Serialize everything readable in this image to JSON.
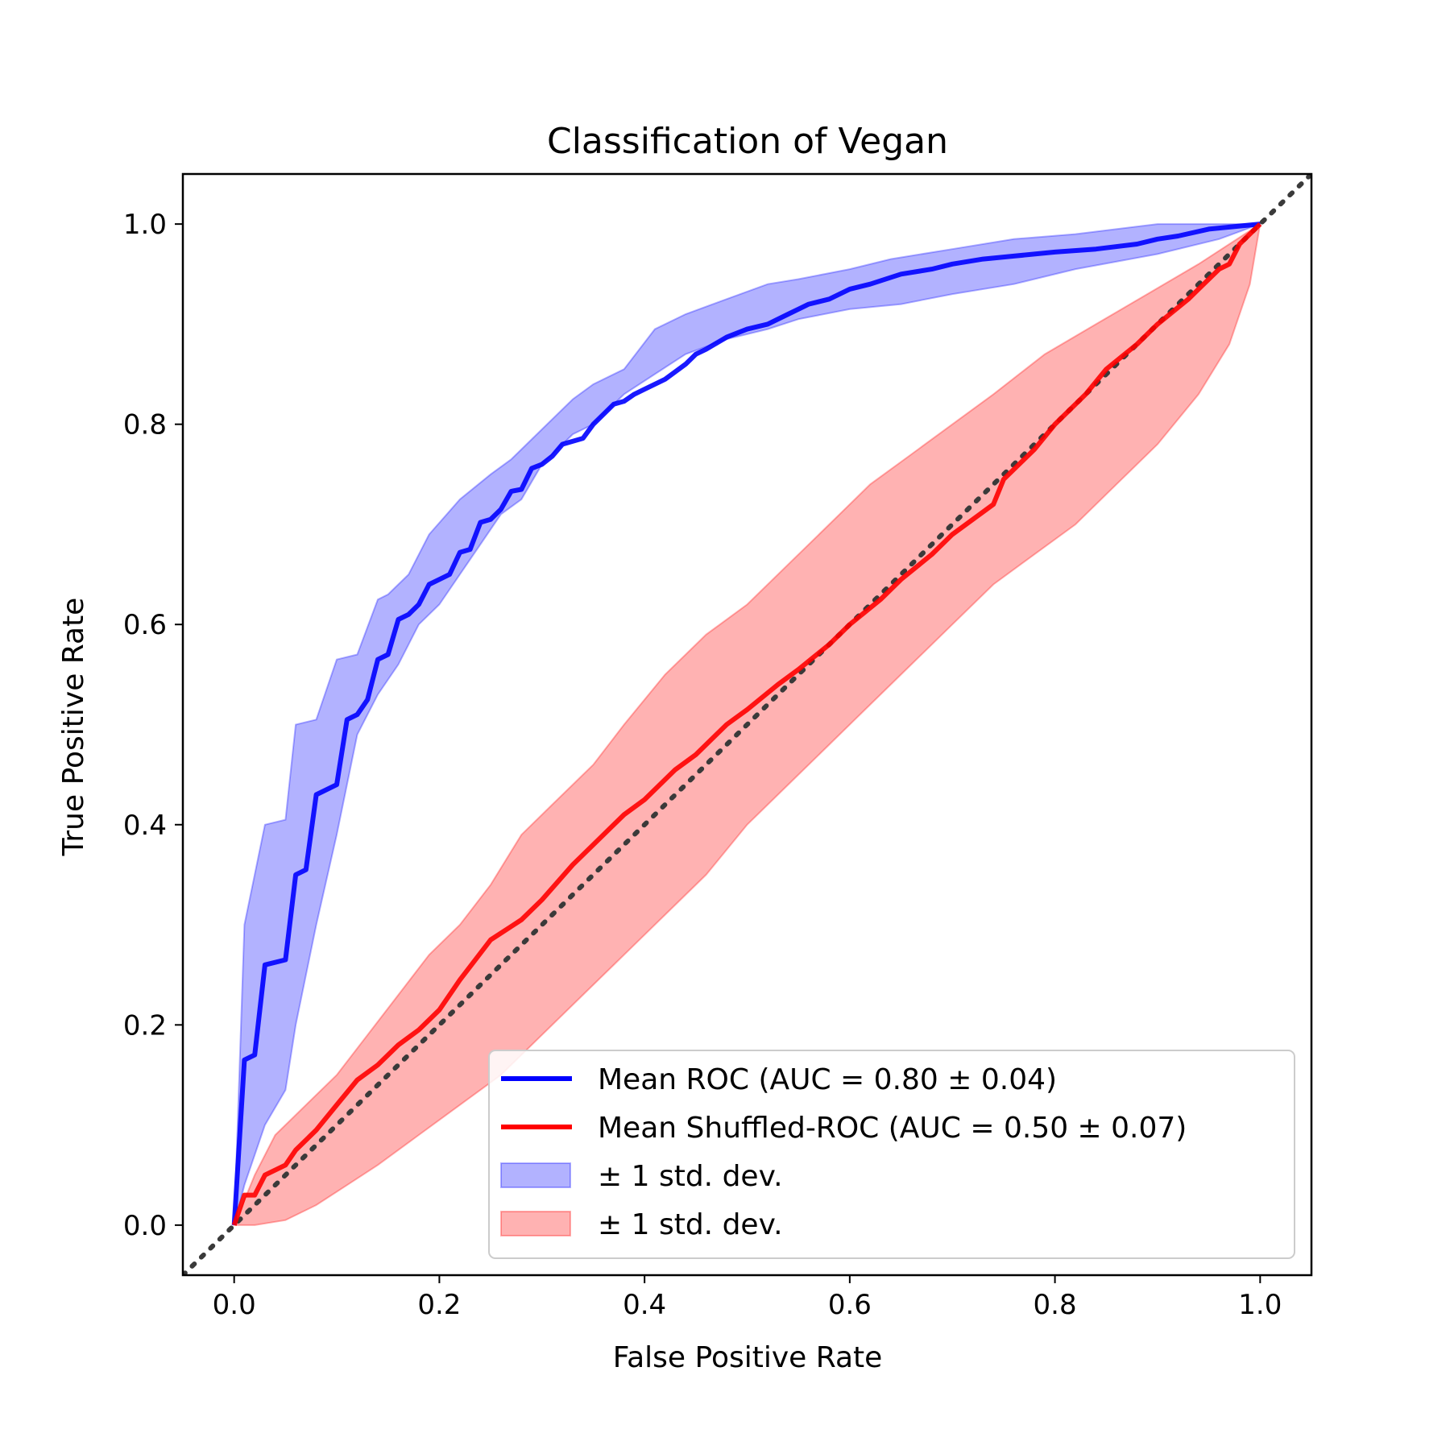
{
  "chart_data": {
    "type": "line",
    "title": "Classification of Vegan",
    "xlabel": "False Positive Rate",
    "ylabel": "True Positive Rate",
    "xlim": [
      -0.05,
      1.05
    ],
    "ylim": [
      -0.05,
      1.05
    ],
    "xticks": [
      0.0,
      0.2,
      0.4,
      0.6,
      0.8,
      1.0
    ],
    "yticks": [
      0.0,
      0.2,
      0.4,
      0.6,
      0.8,
      1.0
    ],
    "xtick_labels": [
      "0.0",
      "0.2",
      "0.4",
      "0.6",
      "0.8",
      "1.0"
    ],
    "ytick_labels": [
      "0.0",
      "0.2",
      "0.4",
      "0.6",
      "0.8",
      "1.0"
    ],
    "grid": false,
    "legend_position": "lower-right",
    "diagonal": {
      "name": "chance",
      "x": [
        -0.05,
        1.05
      ],
      "y": [
        -0.05,
        1.05
      ],
      "color": "#3a3a3a",
      "style": "dotted"
    },
    "series": [
      {
        "name": "Mean ROC (AUC = 0.80 ± 0.04)",
        "color": "#0000ff",
        "x": [
          0.0,
          0.01,
          0.02,
          0.03,
          0.05,
          0.06,
          0.07,
          0.08,
          0.1,
          0.11,
          0.12,
          0.13,
          0.14,
          0.15,
          0.16,
          0.17,
          0.18,
          0.19,
          0.2,
          0.21,
          0.22,
          0.23,
          0.24,
          0.25,
          0.26,
          0.27,
          0.28,
          0.29,
          0.3,
          0.31,
          0.32,
          0.34,
          0.35,
          0.37,
          0.38,
          0.39,
          0.4,
          0.42,
          0.44,
          0.45,
          0.46,
          0.48,
          0.5,
          0.52,
          0.54,
          0.56,
          0.58,
          0.6,
          0.62,
          0.65,
          0.68,
          0.7,
          0.73,
          0.76,
          0.8,
          0.84,
          0.88,
          0.9,
          0.92,
          0.95,
          0.98,
          1.0
        ],
        "y": [
          0.0,
          0.165,
          0.17,
          0.26,
          0.265,
          0.35,
          0.355,
          0.43,
          0.44,
          0.505,
          0.51,
          0.525,
          0.565,
          0.57,
          0.605,
          0.61,
          0.62,
          0.64,
          0.645,
          0.65,
          0.672,
          0.675,
          0.702,
          0.705,
          0.715,
          0.733,
          0.735,
          0.756,
          0.76,
          0.768,
          0.78,
          0.786,
          0.8,
          0.82,
          0.823,
          0.83,
          0.835,
          0.845,
          0.86,
          0.87,
          0.875,
          0.887,
          0.895,
          0.9,
          0.91,
          0.92,
          0.925,
          0.935,
          0.94,
          0.95,
          0.955,
          0.96,
          0.965,
          0.968,
          0.972,
          0.975,
          0.98,
          0.985,
          0.988,
          0.995,
          0.998,
          1.0
        ],
        "std_upper": [
          0.0,
          0.3,
          0.4,
          0.405,
          0.5,
          0.505,
          0.565,
          0.57,
          0.625,
          0.63,
          0.65,
          0.69,
          0.725,
          0.75,
          0.765,
          0.795,
          0.825,
          0.84,
          0.855,
          0.895,
          0.91,
          0.925,
          0.94,
          0.945,
          0.955,
          0.965,
          0.975,
          0.985,
          0.99,
          1.0,
          1.0
        ],
        "std_lower": [
          0.0,
          0.04,
          0.1,
          0.135,
          0.2,
          0.3,
          0.39,
          0.49,
          0.53,
          0.56,
          0.6,
          0.62,
          0.65,
          0.68,
          0.71,
          0.725,
          0.76,
          0.79,
          0.8,
          0.83,
          0.85,
          0.87,
          0.885,
          0.895,
          0.905,
          0.915,
          0.92,
          0.93,
          0.94,
          0.955,
          0.97,
          0.985,
          1.0
        ],
        "std_upper_x": [
          0.0,
          0.01,
          0.03,
          0.05,
          0.06,
          0.08,
          0.1,
          0.12,
          0.14,
          0.15,
          0.17,
          0.19,
          0.22,
          0.25,
          0.27,
          0.3,
          0.33,
          0.35,
          0.38,
          0.41,
          0.44,
          0.48,
          0.52,
          0.55,
          0.6,
          0.64,
          0.7,
          0.76,
          0.82,
          0.9,
          1.0
        ],
        "std_lower_x": [
          0.0,
          0.01,
          0.03,
          0.05,
          0.06,
          0.08,
          0.1,
          0.12,
          0.14,
          0.16,
          0.18,
          0.2,
          0.22,
          0.24,
          0.26,
          0.28,
          0.3,
          0.33,
          0.35,
          0.38,
          0.41,
          0.44,
          0.48,
          0.52,
          0.55,
          0.6,
          0.65,
          0.7,
          0.76,
          0.82,
          0.9,
          0.96,
          1.0
        ]
      },
      {
        "name": "Mean Shuffled-ROC (AUC = 0.50 ± 0.07)",
        "color": "#ff0000",
        "x": [
          0.0,
          0.01,
          0.02,
          0.03,
          0.05,
          0.06,
          0.08,
          0.1,
          0.12,
          0.14,
          0.16,
          0.18,
          0.2,
          0.22,
          0.25,
          0.28,
          0.3,
          0.33,
          0.35,
          0.38,
          0.4,
          0.43,
          0.45,
          0.48,
          0.5,
          0.53,
          0.55,
          0.58,
          0.6,
          0.63,
          0.65,
          0.68,
          0.7,
          0.74,
          0.75,
          0.78,
          0.8,
          0.83,
          0.85,
          0.88,
          0.9,
          0.93,
          0.94,
          0.96,
          0.97,
          0.98,
          1.0
        ],
        "y": [
          0.0,
          0.03,
          0.03,
          0.05,
          0.06,
          0.075,
          0.095,
          0.12,
          0.145,
          0.16,
          0.18,
          0.195,
          0.215,
          0.245,
          0.285,
          0.305,
          0.325,
          0.36,
          0.38,
          0.41,
          0.425,
          0.455,
          0.47,
          0.5,
          0.515,
          0.54,
          0.555,
          0.58,
          0.6,
          0.625,
          0.645,
          0.67,
          0.69,
          0.72,
          0.745,
          0.775,
          0.8,
          0.83,
          0.855,
          0.88,
          0.9,
          0.925,
          0.935,
          0.955,
          0.96,
          0.98,
          1.0
        ],
        "std_upper": [
          0.0,
          0.05,
          0.09,
          0.12,
          0.15,
          0.19,
          0.23,
          0.27,
          0.3,
          0.34,
          0.39,
          0.42,
          0.46,
          0.5,
          0.55,
          0.59,
          0.62,
          0.66,
          0.7,
          0.74,
          0.77,
          0.8,
          0.83,
          0.87,
          0.9,
          0.93,
          0.96,
          1.0
        ],
        "std_lower": [
          0.0,
          0.0,
          0.005,
          0.02,
          0.04,
          0.06,
          0.09,
          0.12,
          0.15,
          0.19,
          0.23,
          0.27,
          0.31,
          0.35,
          0.4,
          0.44,
          0.48,
          0.52,
          0.56,
          0.6,
          0.64,
          0.67,
          0.7,
          0.74,
          0.78,
          0.83,
          0.88,
          0.94,
          1.0
        ],
        "std_upper_x": [
          0.0,
          0.02,
          0.04,
          0.07,
          0.1,
          0.13,
          0.16,
          0.19,
          0.22,
          0.25,
          0.28,
          0.31,
          0.35,
          0.38,
          0.42,
          0.46,
          0.5,
          0.54,
          0.58,
          0.62,
          0.66,
          0.7,
          0.74,
          0.79,
          0.84,
          0.89,
          0.94,
          1.0
        ],
        "std_lower_x": [
          0.0,
          0.02,
          0.05,
          0.08,
          0.11,
          0.14,
          0.18,
          0.22,
          0.26,
          0.3,
          0.34,
          0.38,
          0.42,
          0.46,
          0.5,
          0.54,
          0.58,
          0.62,
          0.66,
          0.7,
          0.74,
          0.78,
          0.82,
          0.86,
          0.9,
          0.94,
          0.97,
          0.99,
          1.0
        ]
      }
    ],
    "bands": [
      {
        "name": "± 1 std. dev.",
        "series": 0,
        "color": "#0000ff",
        "alpha": 0.3
      },
      {
        "name": "± 1 std. dev.",
        "series": 1,
        "color": "#ff0000",
        "alpha": 0.3
      }
    ]
  }
}
